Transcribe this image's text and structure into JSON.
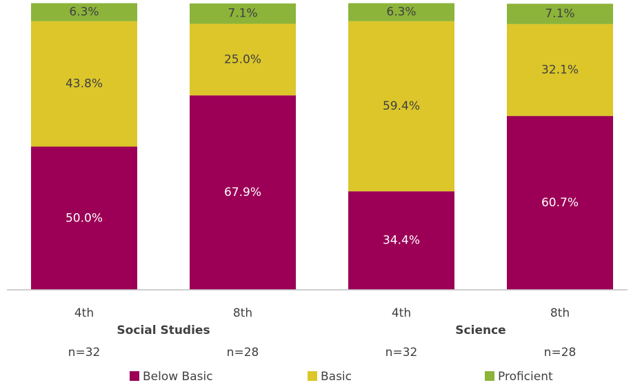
{
  "chart_data": {
    "type": "bar",
    "stacked": true,
    "categories": [
      "4th",
      "8th",
      "4th",
      "8th"
    ],
    "groups": [
      {
        "label": "Social Studies",
        "categories": [
          0,
          1
        ]
      },
      {
        "label": "Science",
        "categories": [
          2,
          3
        ]
      }
    ],
    "n_labels": [
      "n=32",
      "n=28",
      "n=32",
      "n=28"
    ],
    "series": [
      {
        "name": "Below Basic",
        "color": "#9b0056",
        "values": [
          50.0,
          67.9,
          34.4,
          60.7
        ],
        "labels": [
          "50.0%",
          "67.9%",
          "34.4%",
          "60.7%"
        ],
        "label_color": "#ffffff"
      },
      {
        "name": "Basic",
        "color": "#dcc62a",
        "values": [
          43.8,
          25.0,
          59.4,
          32.1
        ],
        "labels": [
          "43.8%",
          "25.0%",
          "59.4%",
          "32.1%"
        ],
        "label_color": "#404040"
      },
      {
        "name": "Proficient",
        "color": "#8cb43a",
        "values": [
          6.3,
          7.1,
          6.3,
          7.1
        ],
        "labels": [
          "6.3%",
          "7.1%",
          "6.3%",
          "7.1%"
        ],
        "label_color": "#404040"
      }
    ],
    "ylim": [
      0,
      100
    ],
    "legend_position": "bottom",
    "grid": false
  }
}
